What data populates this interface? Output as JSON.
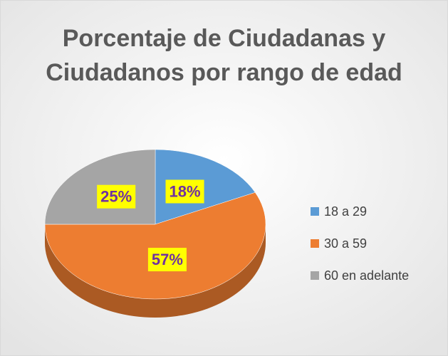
{
  "chart_data": {
    "type": "pie",
    "title": "Porcentaje de Ciudadanas y Ciudadanos por rango de edad",
    "categories": [
      "18 a 29",
      "30 a 59",
      "60 en adelante"
    ],
    "values": [
      18,
      57,
      25
    ],
    "value_labels": [
      "18%",
      "57%",
      "25%"
    ],
    "colors": [
      "#5b9bd5",
      "#ed7d31",
      "#a5a5a5"
    ],
    "legend": "right"
  }
}
